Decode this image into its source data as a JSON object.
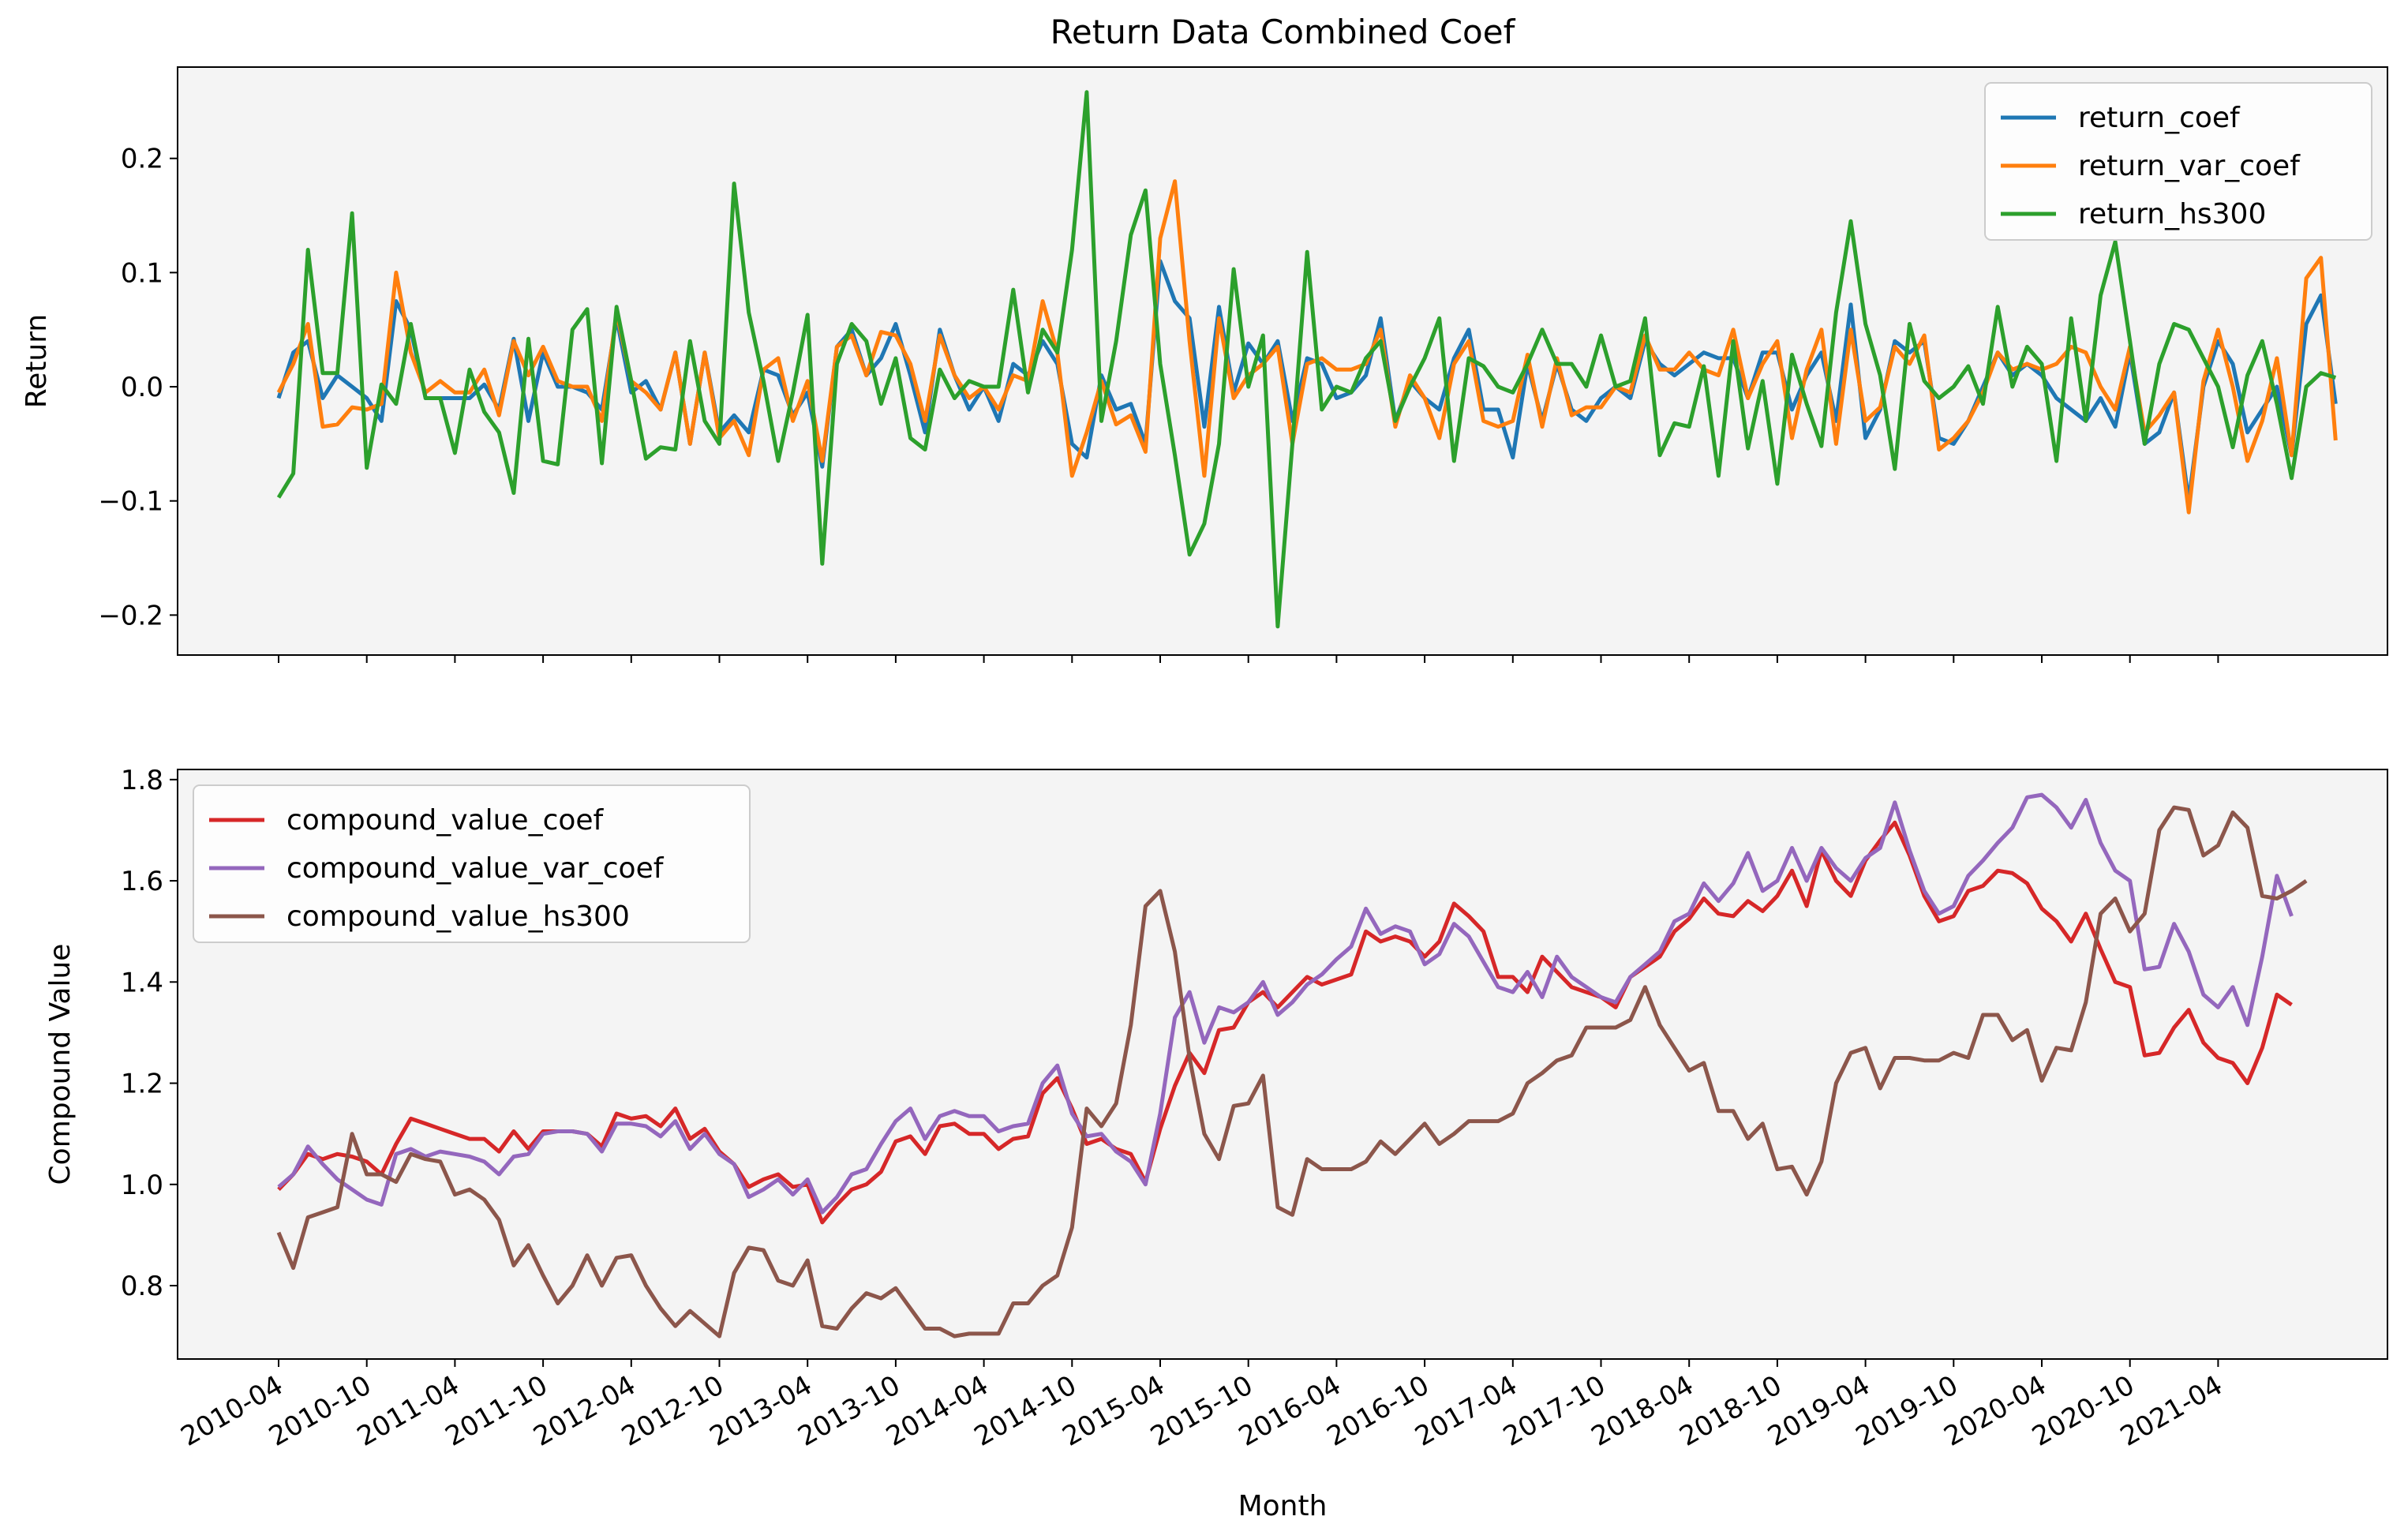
{
  "figure": {
    "title": "Return Data Combined Coef",
    "xlabel": "Month",
    "x_tick_labels": [
      "2010-04",
      "2010-10",
      "2011-04",
      "2011-10",
      "2012-04",
      "2012-10",
      "2013-04",
      "2013-10",
      "2014-04",
      "2014-10",
      "2015-04",
      "2015-10",
      "2016-04",
      "2016-10",
      "2017-04",
      "2017-10",
      "2018-04",
      "2018-10",
      "2019-04",
      "2019-10",
      "2020-04",
      "2020-10",
      "2021-04"
    ]
  },
  "colors": {
    "return_coef": "#1f77b4",
    "return_var_coef": "#ff7f0e",
    "return_hs300": "#2ca02c",
    "compound_value_coef": "#d62728",
    "compound_value_var_coef": "#9467bd",
    "compound_value_hs300": "#8c564b",
    "axes_bg": "#f4f4f4"
  },
  "chart_data": [
    {
      "type": "line",
      "title": "Return Data Combined Coef",
      "xlabel": "",
      "ylabel": "Return",
      "ylim": [
        -0.235,
        0.28
      ],
      "y_ticks": [
        -0.2,
        -0.1,
        0.0,
        0.1,
        0.2
      ],
      "y_tick_labels": [
        "−0.2",
        "−0.1",
        "0.0",
        "0.1",
        "0.2"
      ],
      "grid": false,
      "legend_position": "top-right",
      "x_start": "2010-04",
      "x_freq": "monthly",
      "series": [
        {
          "name": "return_coef",
          "color": "#1f77b4",
          "values": [
            -0.01,
            0.03,
            0.04,
            -0.01,
            0.01,
            0.0,
            -0.01,
            -0.03,
            0.075,
            0.05,
            -0.01,
            -0.01,
            -0.01,
            -0.01,
            0.002,
            -0.02,
            0.042,
            -0.03,
            0.03,
            0.0,
            0.0,
            -0.005,
            -0.02,
            0.06,
            -0.005,
            0.005,
            -0.02,
            0.03,
            -0.05,
            0.03,
            -0.04,
            -0.025,
            -0.04,
            0.015,
            0.01,
            -0.025,
            -0.005,
            -0.07,
            0.035,
            0.05,
            0.01,
            0.025,
            0.055,
            0.01,
            -0.04,
            0.05,
            0.01,
            -0.02,
            0.0,
            -0.03,
            0.02,
            0.01,
            0.04,
            0.02,
            -0.05,
            -0.062,
            0.01,
            -0.02,
            -0.015,
            -0.05,
            0.11,
            0.075,
            0.06,
            -0.035,
            0.07,
            -0.005,
            0.038,
            0.02,
            0.04,
            -0.03,
            0.025,
            0.02,
            -0.01,
            -0.005,
            0.01,
            0.06,
            -0.03,
            0.005,
            -0.01,
            -0.02,
            0.025,
            0.05,
            -0.02,
            -0.02,
            -0.062,
            0.02,
            -0.03,
            0.02,
            -0.02,
            -0.03,
            -0.01,
            0.0,
            -0.01,
            0.04,
            0.02,
            0.01,
            0.02,
            0.03,
            0.025,
            0.025,
            -0.01,
            0.03,
            0.03,
            -0.02,
            0.01,
            0.03,
            -0.03,
            0.072,
            -0.045,
            -0.02,
            0.04,
            0.03,
            0.04,
            -0.045,
            -0.05,
            -0.03,
            0.0,
            0.03,
            0.01,
            0.02,
            0.01,
            -0.01,
            -0.02,
            -0.03,
            -0.01,
            -0.035,
            0.03,
            -0.05,
            -0.04,
            -0.005,
            -0.1,
            0.0,
            0.04,
            0.02,
            -0.04,
            -0.02,
            0.0,
            -0.06,
            0.055,
            0.08,
            -0.015
          ]
        },
        {
          "name": "return_var_coef",
          "color": "#ff7f0e",
          "values": [
            -0.005,
            0.02,
            0.055,
            -0.035,
            -0.033,
            -0.018,
            -0.02,
            -0.015,
            0.1,
            0.03,
            -0.005,
            0.005,
            -0.005,
            -0.005,
            0.015,
            -0.025,
            0.04,
            0.01,
            0.035,
            0.005,
            0.0,
            0.0,
            -0.03,
            0.065,
            0.005,
            -0.005,
            -0.02,
            0.03,
            -0.05,
            0.03,
            -0.045,
            -0.03,
            -0.06,
            0.015,
            0.025,
            -0.03,
            0.005,
            -0.065,
            0.035,
            0.045,
            0.01,
            0.048,
            0.045,
            0.02,
            -0.03,
            0.045,
            0.01,
            -0.01,
            0.0,
            -0.02,
            0.01,
            0.005,
            0.075,
            0.03,
            -0.078,
            -0.04,
            0.005,
            -0.033,
            -0.025,
            -0.057,
            0.13,
            0.18,
            0.04,
            -0.078,
            0.06,
            -0.01,
            0.01,
            0.02,
            0.035,
            -0.05,
            0.02,
            0.025,
            0.015,
            0.015,
            0.02,
            0.05,
            -0.035,
            0.01,
            -0.01,
            -0.045,
            0.02,
            0.04,
            -0.03,
            -0.035,
            -0.03,
            0.028,
            -0.035,
            0.025,
            -0.025,
            -0.018,
            -0.018,
            0.0,
            -0.005,
            0.045,
            0.015,
            0.015,
            0.03,
            0.015,
            0.01,
            0.05,
            -0.01,
            0.02,
            0.04,
            -0.045,
            0.015,
            0.05,
            -0.05,
            0.05,
            -0.03,
            -0.018,
            0.035,
            0.02,
            0.045,
            -0.055,
            -0.045,
            -0.03,
            -0.005,
            0.03,
            0.015,
            0.02,
            0.015,
            0.02,
            0.035,
            0.03,
            0.0,
            -0.02,
            0.035,
            -0.04,
            -0.025,
            -0.005,
            -0.11,
            0.005,
            0.05,
            0.0,
            -0.065,
            -0.03,
            0.025,
            -0.06,
            0.095,
            0.113,
            -0.047
          ]
        },
        {
          "name": "return_hs300",
          "color": "#2ca02c",
          "values": [
            -0.097,
            -0.076,
            0.12,
            0.012,
            0.012,
            0.152,
            -0.071,
            0.002,
            -0.015,
            0.055,
            -0.01,
            -0.01,
            -0.058,
            0.015,
            -0.022,
            -0.04,
            -0.093,
            0.042,
            -0.065,
            -0.068,
            0.05,
            0.068,
            -0.067,
            0.07,
            0.005,
            -0.063,
            -0.053,
            -0.055,
            0.04,
            -0.03,
            -0.05,
            0.178,
            0.065,
            0.005,
            -0.065,
            -0.005,
            0.063,
            -0.155,
            0.02,
            0.055,
            0.04,
            -0.015,
            0.025,
            -0.045,
            -0.055,
            0.015,
            -0.01,
            0.005,
            0.0,
            0.0,
            0.085,
            -0.005,
            0.05,
            0.03,
            0.12,
            0.258,
            -0.03,
            0.04,
            0.133,
            0.172,
            0.02,
            -0.06,
            -0.147,
            -0.12,
            -0.05,
            0.103,
            0.0,
            0.045,
            -0.21,
            -0.05,
            0.118,
            -0.02,
            0.0,
            -0.005,
            0.025,
            0.04,
            -0.03,
            0.0,
            0.025,
            0.06,
            -0.065,
            0.025,
            0.018,
            0.0,
            -0.005,
            0.02,
            0.05,
            0.02,
            0.02,
            0.0,
            0.045,
            0.0,
            0.005,
            0.06,
            -0.06,
            -0.032,
            -0.035,
            0.018,
            -0.078,
            0.04,
            -0.054,
            0.005,
            -0.085,
            0.028,
            -0.015,
            -0.052,
            0.065,
            0.145,
            0.055,
            0.01,
            -0.072,
            0.055,
            0.005,
            -0.01,
            0.0,
            0.018,
            -0.015,
            0.07,
            0.0,
            0.035,
            0.02,
            -0.065,
            0.06,
            -0.03,
            0.08,
            0.127,
            0.04,
            -0.05,
            0.02,
            0.055,
            0.05,
            0.025,
            0.0,
            -0.053,
            0.01,
            0.04,
            -0.015,
            -0.08,
            0.0,
            0.012,
            0.008
          ]
        }
      ]
    },
    {
      "type": "line",
      "xlabel": "Month",
      "ylabel": "Compound Value",
      "ylim": [
        0.655,
        1.82
      ],
      "y_ticks": [
        0.8,
        1.0,
        1.2,
        1.4,
        1.6,
        1.8
      ],
      "y_tick_labels": [
        "0.8",
        "1.0",
        "1.2",
        "1.4",
        "1.6",
        "1.8"
      ],
      "grid": false,
      "legend_position": "top-left",
      "x_start": "2010-04",
      "x_freq": "monthly",
      "series": [
        {
          "name": "compound_value_coef",
          "color": "#d62728",
          "values": [
            0.99,
            1.02,
            1.06,
            1.05,
            1.06,
            1.055,
            1.045,
            1.02,
            1.08,
            1.13,
            1.12,
            1.11,
            1.1,
            1.09,
            1.09,
            1.065,
            1.105,
            1.07,
            1.105,
            1.105,
            1.105,
            1.1,
            1.075,
            1.14,
            1.13,
            1.135,
            1.115,
            1.15,
            1.09,
            1.11,
            1.065,
            1.04,
            0.995,
            1.01,
            1.02,
            0.995,
            1.0,
            0.925,
            0.96,
            0.99,
            1.0,
            1.025,
            1.085,
            1.095,
            1.06,
            1.115,
            1.12,
            1.1,
            1.1,
            1.07,
            1.09,
            1.095,
            1.18,
            1.21,
            1.15,
            1.08,
            1.09,
            1.07,
            1.06,
            1.005,
            1.11,
            1.195,
            1.26,
            1.22,
            1.305,
            1.31,
            1.36,
            1.38,
            1.35,
            1.38,
            1.41,
            1.395,
            1.405,
            1.415,
            1.5,
            1.48,
            1.49,
            1.48,
            1.45,
            1.48,
            1.555,
            1.53,
            1.5,
            1.41,
            1.41,
            1.38,
            1.45,
            1.42,
            1.39,
            1.38,
            1.37,
            1.35,
            1.41,
            1.43,
            1.45,
            1.5,
            1.525,
            1.565,
            1.535,
            1.53,
            1.56,
            1.54,
            1.57,
            1.62,
            1.55,
            1.66,
            1.6,
            1.57,
            1.64,
            1.68,
            1.715,
            1.65,
            1.57,
            1.52,
            1.53,
            1.58,
            1.59,
            1.62,
            1.615,
            1.595,
            1.545,
            1.52,
            1.48,
            1.535,
            1.465,
            1.4,
            1.39,
            1.255,
            1.26,
            1.31,
            1.345,
            1.28,
            1.25,
            1.24,
            1.2,
            1.27,
            1.375,
            1.355
          ]
        },
        {
          "name": "compound_value_var_coef",
          "color": "#9467bd",
          "values": [
            0.995,
            1.02,
            1.075,
            1.04,
            1.01,
            0.99,
            0.97,
            0.96,
            1.06,
            1.07,
            1.055,
            1.065,
            1.06,
            1.055,
            1.045,
            1.02,
            1.055,
            1.06,
            1.1,
            1.105,
            1.105,
            1.1,
            1.065,
            1.12,
            1.12,
            1.115,
            1.095,
            1.125,
            1.07,
            1.1,
            1.06,
            1.04,
            0.975,
            0.99,
            1.01,
            0.98,
            1.01,
            0.945,
            0.975,
            1.02,
            1.03,
            1.08,
            1.125,
            1.15,
            1.09,
            1.135,
            1.145,
            1.135,
            1.135,
            1.105,
            1.115,
            1.12,
            1.2,
            1.235,
            1.14,
            1.095,
            1.1,
            1.065,
            1.045,
            1.0,
            1.14,
            1.33,
            1.38,
            1.28,
            1.35,
            1.34,
            1.36,
            1.4,
            1.335,
            1.36,
            1.395,
            1.415,
            1.445,
            1.47,
            1.545,
            1.495,
            1.51,
            1.5,
            1.435,
            1.455,
            1.515,
            1.49,
            1.44,
            1.39,
            1.38,
            1.42,
            1.37,
            1.45,
            1.41,
            1.39,
            1.37,
            1.36,
            1.41,
            1.435,
            1.46,
            1.52,
            1.535,
            1.595,
            1.56,
            1.595,
            1.655,
            1.58,
            1.6,
            1.665,
            1.6,
            1.665,
            1.625,
            1.6,
            1.645,
            1.665,
            1.755,
            1.66,
            1.58,
            1.535,
            1.55,
            1.61,
            1.64,
            1.675,
            1.705,
            1.765,
            1.77,
            1.745,
            1.705,
            1.76,
            1.675,
            1.62,
            1.6,
            1.425,
            1.43,
            1.515,
            1.46,
            1.375,
            1.35,
            1.39,
            1.315,
            1.45,
            1.61,
            1.53
          ]
        },
        {
          "name": "compound_value_hs300",
          "color": "#8c564b",
          "values": [
            0.905,
            0.835,
            0.935,
            0.945,
            0.955,
            1.1,
            1.02,
            1.02,
            1.005,
            1.06,
            1.05,
            1.045,
            0.98,
            0.99,
            0.97,
            0.93,
            0.84,
            0.88,
            0.82,
            0.765,
            0.8,
            0.86,
            0.8,
            0.855,
            0.86,
            0.8,
            0.755,
            0.72,
            0.75,
            0.725,
            0.7,
            0.825,
            0.875,
            0.87,
            0.81,
            0.8,
            0.85,
            0.72,
            0.715,
            0.755,
            0.785,
            0.775,
            0.795,
            0.755,
            0.715,
            0.715,
            0.7,
            0.705,
            0.705,
            0.705,
            0.765,
            0.765,
            0.8,
            0.82,
            0.915,
            1.15,
            1.115,
            1.16,
            1.315,
            1.55,
            1.58,
            1.46,
            1.25,
            1.1,
            1.05,
            1.155,
            1.16,
            1.215,
            0.955,
            0.94,
            1.05,
            1.03,
            1.03,
            1.03,
            1.045,
            1.085,
            1.06,
            1.09,
            1.12,
            1.08,
            1.1,
            1.125,
            1.125,
            1.125,
            1.14,
            1.2,
            1.22,
            1.245,
            1.255,
            1.31,
            1.31,
            1.31,
            1.325,
            1.39,
            1.315,
            1.27,
            1.225,
            1.24,
            1.145,
            1.145,
            1.09,
            1.12,
            1.03,
            1.035,
            0.98,
            1.045,
            1.2,
            1.26,
            1.27,
            1.19,
            1.25,
            1.25,
            1.245,
            1.245,
            1.26,
            1.25,
            1.335,
            1.335,
            1.285,
            1.305,
            1.205,
            1.27,
            1.265,
            1.36,
            1.535,
            1.565,
            1.5,
            1.535,
            1.7,
            1.745,
            1.74,
            1.65,
            1.67,
            1.735,
            1.705,
            1.57,
            1.565,
            1.58,
            1.6
          ]
        }
      ]
    }
  ]
}
